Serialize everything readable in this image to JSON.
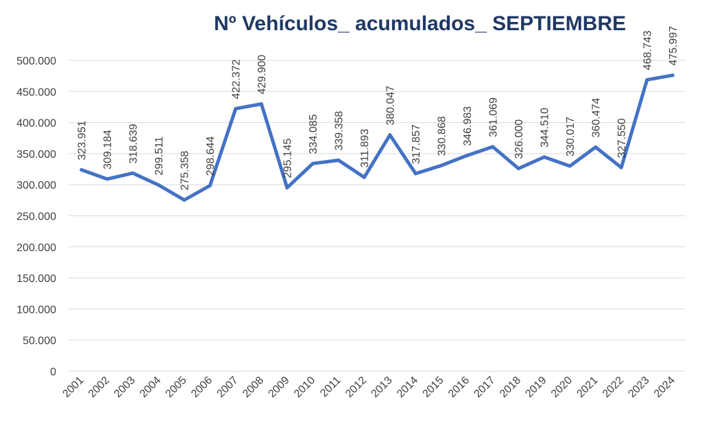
{
  "chart_data": {
    "type": "line",
    "title": "Nº Vehículos_ acumulados_ SEPTIEMBRE",
    "xlabel": "",
    "ylabel": "",
    "ylim": [
      0,
      500000
    ],
    "yticks": [
      0,
      50000,
      100000,
      150000,
      200000,
      250000,
      300000,
      350000,
      400000,
      450000,
      500000
    ],
    "ytick_labels": [
      "0",
      "50.000",
      "100.000",
      "150.000",
      "200.000",
      "250.000",
      "300.000",
      "350.000",
      "400.000",
      "450.000",
      "500.000"
    ],
    "grid": true,
    "line_color": "#4472c4",
    "categories": [
      "2001",
      "2002",
      "2003",
      "2004",
      "2005",
      "2006",
      "2007",
      "2008",
      "2009",
      "2010",
      "2011",
      "2012",
      "2013",
      "2014",
      "2015",
      "2016",
      "2017",
      "2018",
      "2019",
      "2020",
      "2021",
      "2022",
      "2023",
      "2024"
    ],
    "values": [
      323951,
      309184,
      318639,
      299511,
      275358,
      298644,
      422372,
      429900,
      295145,
      334085,
      339358,
      311893,
      380047,
      317857,
      330868,
      346983,
      361069,
      326000,
      344510,
      330017,
      360474,
      327550,
      468743,
      475997
    ],
    "data_labels": [
      "323.951",
      "309.184",
      "318.639",
      "299.511",
      "275.358",
      "298.644",
      "422.372",
      "429.900",
      "295.145",
      "334.085",
      "339.358",
      "311.893",
      "380.047",
      "317.857",
      "330.868",
      "346.983",
      "361.069",
      "326.000",
      "344.510",
      "330.017",
      "360.474",
      "327.550",
      "468.743",
      "475.997"
    ]
  }
}
